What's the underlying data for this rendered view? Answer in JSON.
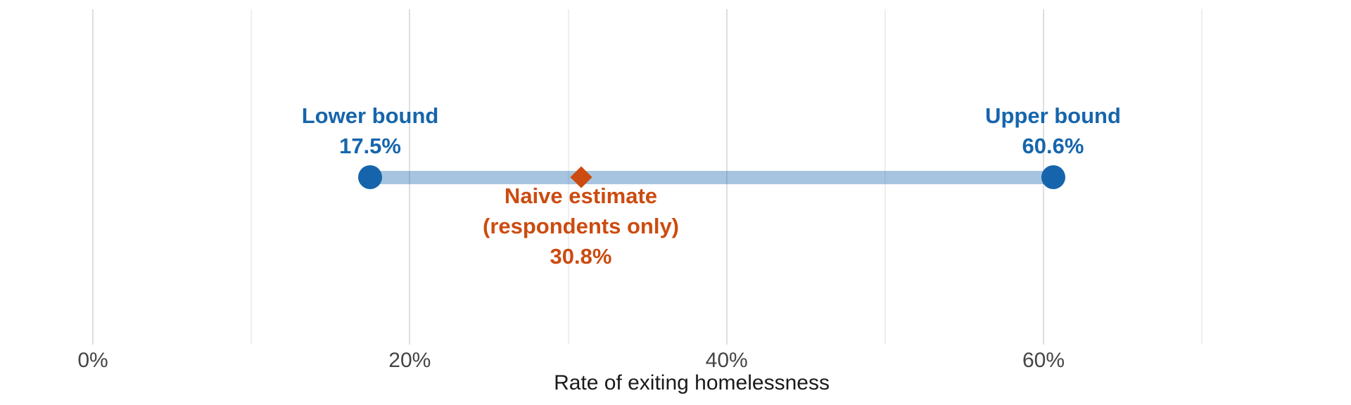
{
  "chart_data": {
    "type": "scatter",
    "subtype": "range-interval",
    "title": "",
    "xlabel": "Rate of exiting homelessness",
    "ylabel": "",
    "x_unit": "%",
    "xlim": [
      -1.6,
      79.4
    ],
    "grid": "vertical-only",
    "legend": "none",
    "x_ticks": [
      {
        "value": 0,
        "label": "0%"
      },
      {
        "value": 20,
        "label": "20%"
      },
      {
        "value": 40,
        "label": "40%"
      },
      {
        "value": 60,
        "label": "60%"
      }
    ],
    "minor_gridlines": [
      10,
      30,
      50,
      70
    ],
    "range_bar": {
      "from": 17.5,
      "to": 60.6
    },
    "points": [
      {
        "id": "lower_bound",
        "x": 17.5,
        "marker": "circle",
        "label": "Lower bound",
        "value_label": "17.5%"
      },
      {
        "id": "naive_estimate",
        "x": 30.8,
        "marker": "diamond",
        "label": "Naive estimate (respondents only)",
        "value_label": "30.8%"
      },
      {
        "id": "upper_bound",
        "x": 60.6,
        "marker": "circle",
        "label": "Upper bound",
        "value_label": "60.6%"
      }
    ]
  },
  "labels": {
    "lower_bound_title": "Lower bound",
    "lower_bound_value": "17.5%",
    "upper_bound_title": "Upper bound",
    "upper_bound_value": "60.6%",
    "naive_title_line1": "Naive estimate",
    "naive_title_line2": "(respondents only)",
    "naive_value": "30.8%",
    "axis_title": "Rate of exiting homelessness"
  },
  "colors": {
    "bound_blue": "#1665AC",
    "estimate_orange": "#CC4B10",
    "range_band": "rgba(22, 101, 172, 0.38)",
    "gridline_major": "#DEDEDE",
    "gridline_minor": "#EFEFEF",
    "tick_label": "#454545",
    "axis_title": "#1A1A1A",
    "background": "#FFFFFF"
  }
}
